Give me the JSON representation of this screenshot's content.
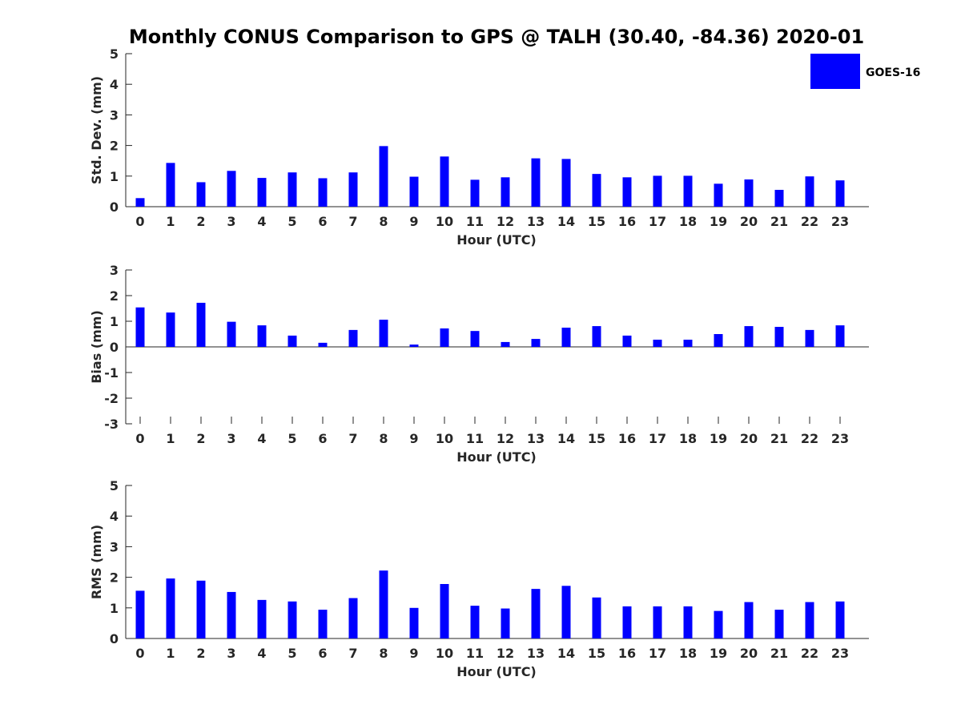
{
  "chart_data": {
    "title": "Monthly CONUS Comparison to GPS @ TALH (30.40, -84.36) 2020-01",
    "legend": {
      "entries": [
        "GOES-16"
      ],
      "placement": "top-right"
    },
    "bar_color": "#0000ff",
    "panels": [
      {
        "type": "bar",
        "xlabel": "Hour (UTC)",
        "ylabel": "Std. Dev. (mm)",
        "ylim": [
          0,
          5
        ],
        "yticks": [
          "0",
          "1",
          "2",
          "3",
          "4",
          "5"
        ],
        "categories": [
          "0",
          "1",
          "2",
          "3",
          "4",
          "5",
          "6",
          "7",
          "8",
          "9",
          "10",
          "11",
          "12",
          "13",
          "14",
          "15",
          "16",
          "17",
          "18",
          "19",
          "20",
          "21",
          "22",
          "23"
        ],
        "series": [
          {
            "name": "GOES-16",
            "values": [
              0.28,
              1.43,
              0.8,
              1.17,
              0.94,
              1.12,
              0.93,
              1.12,
              1.98,
              0.98,
              1.64,
              0.88,
              0.96,
              1.58,
              1.56,
              1.07,
              0.96,
              1.01,
              1.01,
              0.75,
              0.89,
              0.55,
              0.99,
              0.86
            ]
          }
        ]
      },
      {
        "type": "bar",
        "xlabel": "Hour (UTC)",
        "ylabel": "Bias (mm)",
        "ylim": [
          -3,
          3
        ],
        "yticks": [
          "-3",
          "-2",
          "-1",
          "0",
          "1",
          "2",
          "3"
        ],
        "categories": [
          "0",
          "1",
          "2",
          "3",
          "4",
          "5",
          "6",
          "7",
          "8",
          "9",
          "10",
          "11",
          "12",
          "13",
          "14",
          "15",
          "16",
          "17",
          "18",
          "19",
          "20",
          "21",
          "22",
          "23"
        ],
        "series": [
          {
            "name": "GOES-16",
            "values": [
              1.54,
              1.34,
              1.72,
              0.98,
              0.84,
              0.44,
              0.16,
              0.66,
              1.06,
              0.09,
              0.72,
              0.62,
              0.19,
              0.31,
              0.75,
              0.81,
              0.44,
              0.28,
              0.28,
              0.5,
              0.81,
              0.78,
              0.66,
              0.84
            ]
          }
        ]
      },
      {
        "type": "bar",
        "xlabel": "Hour (UTC)",
        "ylabel": "RMS (mm)",
        "ylim": [
          0,
          5
        ],
        "yticks": [
          "0",
          "1",
          "2",
          "3",
          "4",
          "5"
        ],
        "categories": [
          "0",
          "1",
          "2",
          "3",
          "4",
          "5",
          "6",
          "7",
          "8",
          "9",
          "10",
          "11",
          "12",
          "13",
          "14",
          "15",
          "16",
          "17",
          "18",
          "19",
          "20",
          "21",
          "22",
          "23"
        ],
        "series": [
          {
            "name": "GOES-16",
            "values": [
              1.56,
              1.96,
              1.89,
              1.52,
              1.26,
              1.21,
              0.94,
              1.32,
              2.22,
              1.0,
              1.78,
              1.07,
              0.98,
              1.62,
              1.72,
              1.34,
              1.05,
              1.05,
              1.05,
              0.9,
              1.19,
              0.94,
              1.19,
              1.21
            ]
          }
        ]
      }
    ]
  }
}
